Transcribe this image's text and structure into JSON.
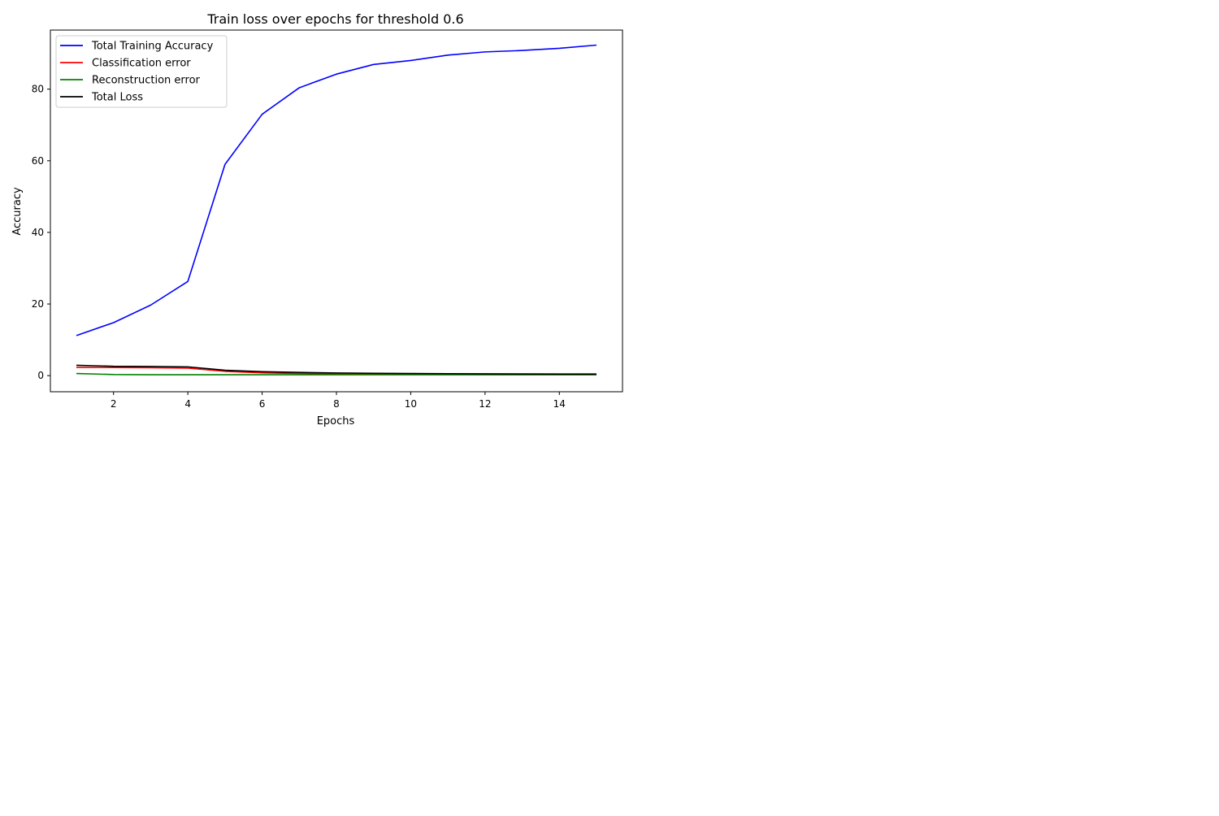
{
  "chart_data": {
    "type": "line",
    "title": "Train loss over epochs for threshold 0.6",
    "xlabel": "Epochs",
    "ylabel": "Accuracy",
    "xlim": [
      0.3,
      15.7
    ],
    "ylim": [
      -4.5,
      96.5
    ],
    "xticks": [
      2,
      4,
      6,
      8,
      10,
      12,
      14
    ],
    "yticks": [
      0,
      20,
      40,
      60,
      80
    ],
    "grid": false,
    "legend_position": "top-left",
    "x": [
      1,
      2,
      3,
      4,
      5,
      6,
      7,
      8,
      9,
      10,
      11,
      12,
      13,
      14,
      15
    ],
    "series": [
      {
        "name": "Total Training Accuracy",
        "color": "#0000ff",
        "values": [
          11.2,
          14.8,
          19.7,
          26.3,
          59.0,
          73.0,
          80.4,
          84.2,
          86.9,
          88.0,
          89.5,
          90.4,
          90.8,
          91.4,
          92.3
        ]
      },
      {
        "name": "Classification error",
        "color": "#ff0000",
        "values": [
          2.3,
          2.25,
          2.2,
          2.1,
          1.2,
          0.8,
          0.6,
          0.5,
          0.4,
          0.35,
          0.3,
          0.28,
          0.26,
          0.24,
          0.22
        ]
      },
      {
        "name": "Reconstruction error",
        "color": "#008000",
        "values": [
          0.6,
          0.3,
          0.25,
          0.25,
          0.25,
          0.25,
          0.25,
          0.25,
          0.25,
          0.25,
          0.25,
          0.25,
          0.25,
          0.25,
          0.25
        ]
      },
      {
        "name": "Total Loss",
        "color": "#000000",
        "values": [
          2.9,
          2.6,
          2.55,
          2.45,
          1.5,
          1.1,
          0.9,
          0.75,
          0.65,
          0.6,
          0.55,
          0.5,
          0.48,
          0.46,
          0.45
        ]
      }
    ]
  }
}
